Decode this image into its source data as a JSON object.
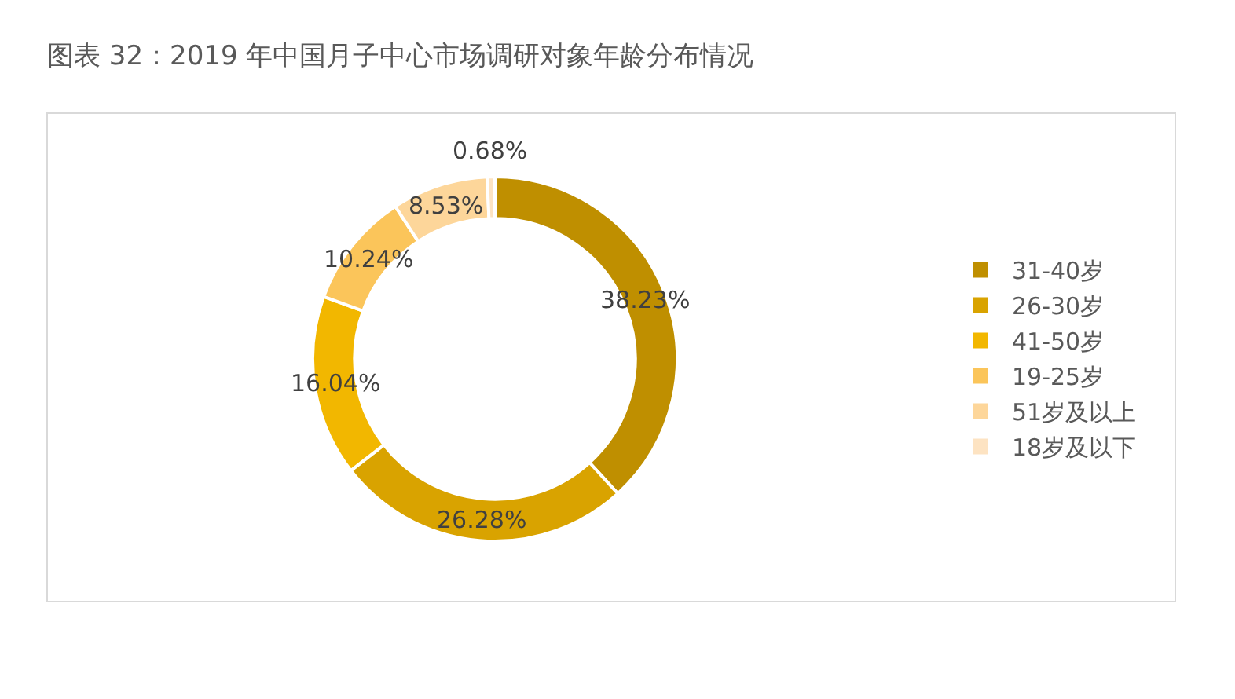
{
  "chart_data": {
    "type": "donut",
    "title": "图表 32：2019 年中国月子中心市场调研对象年龄分布情况",
    "categories": [
      "31-40岁",
      "26-30岁",
      "41-50岁",
      "19-25岁",
      "51岁及以上",
      "18岁及以下"
    ],
    "values": [
      38.23,
      26.28,
      16.04,
      10.24,
      8.53,
      0.68
    ],
    "value_labels": [
      "38.23%",
      "26.28%",
      "16.04%",
      "10.24%",
      "8.53%",
      "0.68%"
    ],
    "colors": [
      "#bf8f00",
      "#d9a300",
      "#f2b700",
      "#fbc55a",
      "#fdd69a",
      "#fde3c2"
    ],
    "legend": "right"
  }
}
